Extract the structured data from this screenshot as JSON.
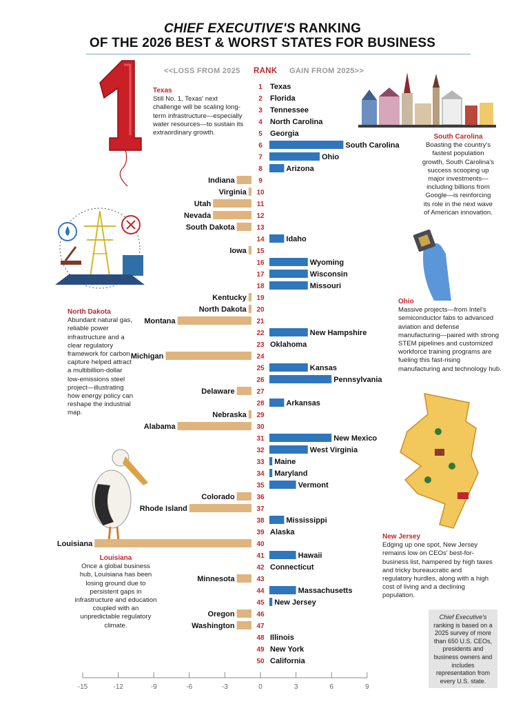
{
  "title": {
    "italic": "CHIEF EXECUTIVE'S",
    "rest": " RANKING",
    "line2": "OF THE 2026 BEST & WORST STATES FOR BUSINESS"
  },
  "header": {
    "loss": "<<LOSS FROM 2025",
    "rank": "RANK",
    "gain": "GAIN FROM 2025>>"
  },
  "callouts": {
    "texas": {
      "title": "Texas",
      "text": "Still No. 1, Texas' next challenge will be scaling long-term infrastructure—especially water resources—to sustain its extraordinary growth."
    },
    "south_carolina": {
      "title": "South Carolina",
      "text": "Boasting the country's fastest population growth, South Carolina's success scooping up major investments—including billions from Google—is reinforcing its role in the next wave of American innovation."
    },
    "north_dakota": {
      "title": "North Dakota",
      "text": "Abundant natural gas, reliable power infrastructure and a clear regulatory framework for carbon capture helped attract a multibillion-dollar low-emissions steel project—illustrating how energy policy can reshape the industrial map."
    },
    "ohio": {
      "title": "Ohio",
      "text": "Massive projects—from Intel's semiconductor fabs to advanced aviation and defense manufacturing—paired with strong STEM pipelines and customized workforce training programs are fueling this fast-rising manufacturing and technology hub."
    },
    "louisiana": {
      "title": "Louisiana",
      "text": "Once a global business hub, Louisiana has been losing ground due to persistent gaps in infrastructure and education coupled with an unpredictable regulatory climate."
    },
    "new_jersey": {
      "title": "New Jersey",
      "text": "Edging up one spot, New Jersey remains low on CEOs' best-for-business list, hampered by high taxes and tricky bureaucratic and regulatory hurdles, along with a high cost of living and a declining population."
    }
  },
  "footnote": {
    "italic": "Chief Executive's",
    "text": " ranking is based on a 2025 survey of more than 650 U.S. CEOs, presidents and business owners and includes representation from every U.S. state."
  },
  "colors": {
    "gain": "#2f76bd",
    "loss": "#e0b47e",
    "rank": "#c0262d",
    "accent": "#c0262d"
  },
  "icons": [
    "red-number-one-balloon-icon",
    "city-skyline-illustration",
    "energy-infrastructure-illustration",
    "gloved-hand-chip-illustration",
    "pelican-illustration",
    "new-jersey-map-illustration"
  ],
  "chart_data": {
    "type": "bar",
    "orientation": "horizontal",
    "categories": [
      "Texas",
      "Florida",
      "Tennessee",
      "North Carolina",
      "Georgia",
      "South Carolina",
      "Ohio",
      "Arizona",
      "Indiana",
      "Virginia",
      "Utah",
      "Nevada",
      "South Dakota",
      "Idaho",
      "Iowa",
      "Wyoming",
      "Wisconsin",
      "Missouri",
      "Kentucky",
      "North Dakota",
      "Montana",
      "New Hampshire",
      "Oklahoma",
      "Michigan",
      "Kansas",
      "Pennsylvania",
      "Delaware",
      "Arkansas",
      "Nebraska",
      "Alabama",
      "New Mexico",
      "West Virginia",
      "Maine",
      "Maryland",
      "Vermont",
      "Colorado",
      "Rhode Island",
      "Mississippi",
      "Alaska",
      "Louisiana",
      "Hawaii",
      "Connecticut",
      "Minnesota",
      "Massachusetts",
      "New Jersey",
      "Oregon",
      "Washington",
      "Illinois",
      "New York",
      "California"
    ],
    "ranks": [
      1,
      2,
      3,
      4,
      5,
      6,
      7,
      8,
      9,
      10,
      11,
      12,
      13,
      14,
      15,
      16,
      17,
      18,
      19,
      20,
      21,
      22,
      23,
      24,
      25,
      26,
      27,
      28,
      29,
      30,
      31,
      32,
      33,
      34,
      35,
      36,
      37,
      38,
      39,
      40,
      41,
      42,
      43,
      44,
      45,
      46,
      47,
      48,
      49,
      50
    ],
    "values": [
      0,
      0,
      0,
      0,
      0,
      7,
      5,
      2,
      -2,
      -1,
      -4,
      -4,
      -2,
      2,
      -1,
      4,
      4,
      4,
      -1,
      -1,
      -7,
      4,
      0,
      -8,
      4,
      6,
      -2,
      2,
      -1,
      -7,
      6,
      4,
      1,
      1,
      3,
      -2,
      -6,
      2,
      0,
      -14,
      3,
      0,
      -2,
      3,
      1,
      -2,
      -2,
      0,
      0,
      0
    ],
    "xlabel": "",
    "ylabel": "",
    "xlim": [
      -15,
      9
    ],
    "xticks": [
      -15,
      -12,
      -9,
      -6,
      -3,
      0,
      3,
      6,
      9
    ],
    "gain_series": "GAIN FROM 2025",
    "loss_series": "LOSS FROM 2025",
    "grid": false,
    "legend": "none"
  }
}
